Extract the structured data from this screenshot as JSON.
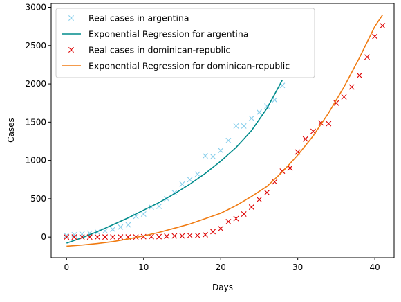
{
  "chart_data": {
    "type": "line",
    "xlabel": "Days",
    "ylabel": "Cases",
    "xlim": [
      -2,
      42.5
    ],
    "ylim": [
      -270,
      3050
    ],
    "xticks": [
      0,
      10,
      20,
      30,
      40
    ],
    "yticks": [
      0,
      500,
      1000,
      1500,
      2000,
      2500,
      3000
    ],
    "grid": false,
    "legend_position": "upper left",
    "series": [
      {
        "name": "Real cases in argentina",
        "kind": "scatter",
        "marker": "x",
        "color": "#87ceeb",
        "x": [
          0,
          1,
          2,
          3,
          4,
          5,
          6,
          7,
          8,
          9,
          10,
          11,
          12,
          13,
          14,
          15,
          16,
          17,
          18,
          19,
          20,
          21,
          22,
          23,
          24,
          25,
          26,
          27,
          28
        ],
        "y": [
          20,
          30,
          40,
          50,
          65,
          80,
          100,
          130,
          160,
          270,
          300,
          390,
          400,
          500,
          580,
          690,
          750,
          820,
          1060,
          1050,
          1130,
          1260,
          1450,
          1450,
          1550,
          1630,
          1710,
          1790,
          1980
        ]
      },
      {
        "name": "Exponential Regression for argentina",
        "kind": "line",
        "color": "#008b8b",
        "x": [
          0,
          2,
          4,
          6,
          8,
          10,
          12,
          14,
          16,
          18,
          20,
          22,
          24,
          26,
          28
        ],
        "y": [
          -80,
          -10,
          70,
          160,
          250,
          350,
          450,
          565,
          690,
          830,
          990,
          1170,
          1390,
          1680,
          2050
        ]
      },
      {
        "name": "Real cases in dominican-republic",
        "kind": "scatter",
        "marker": "x",
        "color": "#dd0000",
        "x": [
          0,
          1,
          2,
          3,
          4,
          5,
          6,
          7,
          8,
          9,
          10,
          11,
          12,
          13,
          14,
          15,
          16,
          17,
          18,
          19,
          20,
          21,
          22,
          23,
          24,
          25,
          26,
          27,
          28,
          29,
          30,
          31,
          32,
          33,
          34,
          35,
          36,
          37,
          38,
          39,
          40,
          41
        ],
        "y": [
          0,
          0,
          0,
          0,
          0,
          0,
          0,
          0,
          0,
          0,
          5,
          5,
          5,
          10,
          15,
          15,
          20,
          20,
          30,
          70,
          110,
          200,
          240,
          300,
          390,
          490,
          580,
          720,
          860,
          900,
          1110,
          1280,
          1380,
          1490,
          1480,
          1750,
          1830,
          1960,
          2110,
          2350,
          2620,
          2760
        ]
      },
      {
        "name": "Exponential Regression for dominican-republic",
        "kind": "line",
        "color": "#f07a10",
        "x": [
          0,
          2,
          4,
          6,
          8,
          10,
          12,
          14,
          16,
          18,
          20,
          22,
          24,
          26,
          28,
          30,
          32,
          34,
          36,
          38,
          40,
          41
        ],
        "y": [
          -120,
          -105,
          -85,
          -60,
          -25,
          15,
          60,
          115,
          170,
          240,
          310,
          410,
          530,
          660,
          850,
          1070,
          1320,
          1620,
          1960,
          2340,
          2750,
          2900
        ]
      }
    ]
  }
}
